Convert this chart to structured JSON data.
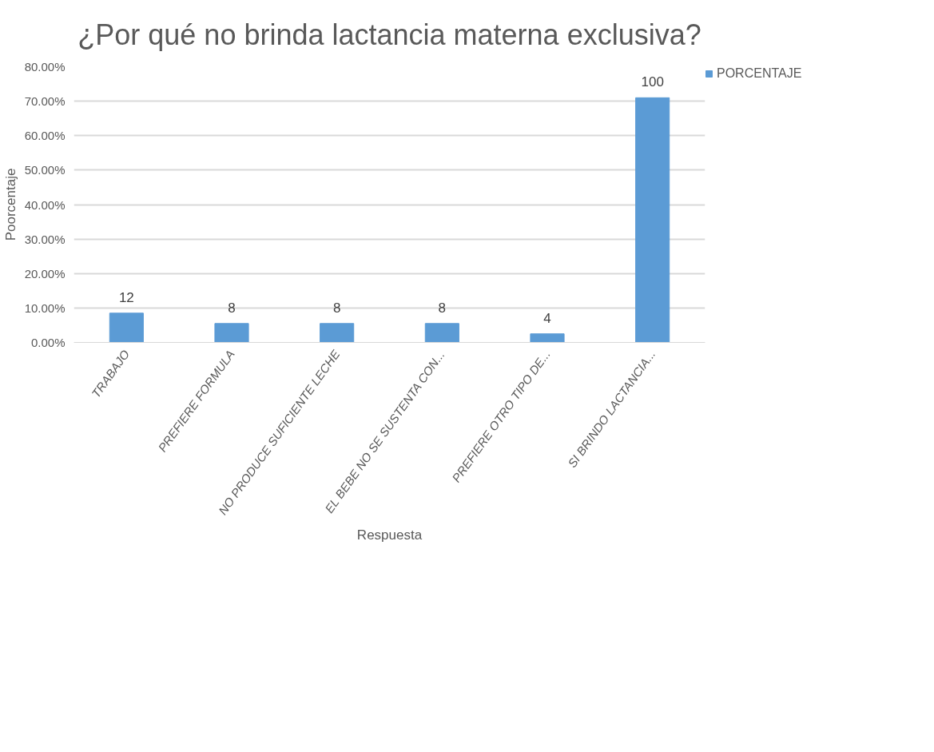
{
  "chart_data": {
    "type": "bar",
    "title": "¿Por qué no brinda lactancia materna exclusiva?",
    "xlabel": "Respuesta",
    "ylabel": "Poorcentaje",
    "categories": [
      "TRABAJO",
      "PREFIERE FORMULA",
      "NO PRODUCE SUFICIENTE LECHE",
      "EL BEBE NO SE SUSTENTA CON...",
      "PREFIERE OTRO TIPO DE...",
      "SI BRINDO LACTANCIA..."
    ],
    "series": [
      {
        "name": "PORCENTAJE",
        "color": "#5b9bd5",
        "values": [
          8.5,
          5.5,
          5.5,
          5.5,
          2.5,
          71
        ]
      }
    ],
    "annotations": [
      {
        "text": "12",
        "x": "TRABAJO",
        "y": 8.5
      },
      {
        "text": "8",
        "x": "PREFIERE FORMULA",
        "y": 5.5
      },
      {
        "text": "8",
        "x": "NO PRODUCE SUFICIENTE LECHE",
        "y": 5.5
      },
      {
        "text": "8",
        "x": "EL BEBE NO SE SUSTENTA CON...",
        "y": 5.5
      },
      {
        "text": "4",
        "x": "PREFIERE OTRO TIPO DE...",
        "y": 2.5
      },
      {
        "text": "100",
        "x": "SI BRINDO LACTANCIA...",
        "y": 71
      }
    ],
    "ylim": [
      0,
      80
    ],
    "yticks": [
      {
        "value": 0,
        "label": "0.00%"
      },
      {
        "value": 10,
        "label": "10.00%"
      },
      {
        "value": 20,
        "label": "20.00%"
      },
      {
        "value": 30,
        "label": "30.00%"
      },
      {
        "value": 40,
        "label": "40.00%"
      },
      {
        "value": 50,
        "label": "50.00%"
      },
      {
        "value": 60,
        "label": "60.00%"
      },
      {
        "value": 70,
        "label": "70.00%"
      },
      {
        "value": 80,
        "label": "80.00%"
      }
    ],
    "grid": "y",
    "legend": "right"
  }
}
